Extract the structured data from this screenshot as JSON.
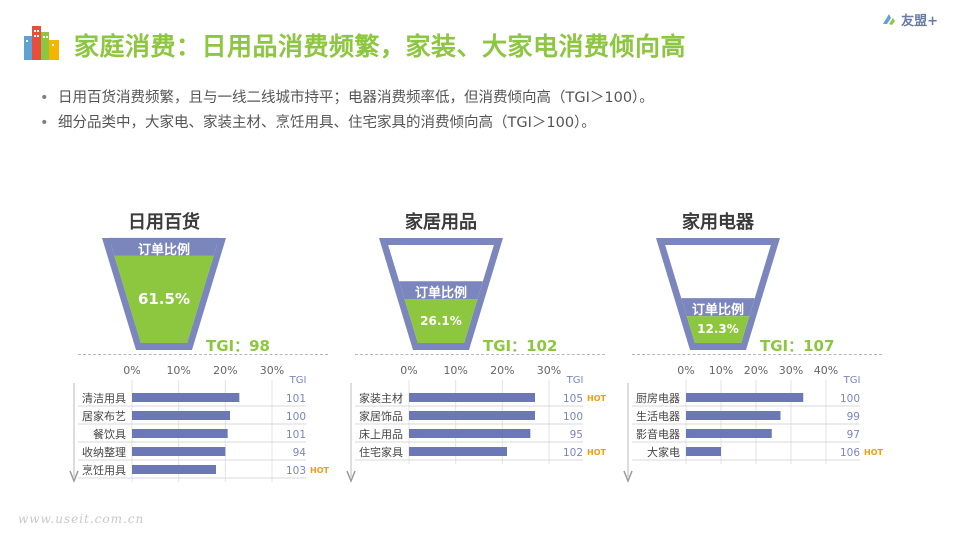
{
  "header": {
    "title": "家庭消费：日用品消费频繁，家装、大家电消费倾向高",
    "brand": "友盟+"
  },
  "bullets": [
    "日用百货消费频繁，且与一线二线城市持平；电器消费频率低，但消费倾向高（TGI＞100）。",
    "细分品类中，大家电、家装主材、烹饪用具、住宅家具的消费倾向高（TGI＞100）。"
  ],
  "funnel_label": "订单比例",
  "watermark": "www.useit.com.cn",
  "colors": {
    "accent_green": "#8dc63f",
    "funnel_blue": "#7b86bd",
    "bar_blue": "#6c77b6",
    "hot_orange": "#f39c12"
  },
  "panels": [
    {
      "title": "日用百货",
      "order_share": "61.5%",
      "order_value": 61.5,
      "tgi_main": "TGI：98"
    },
    {
      "title": "家居用品",
      "order_share": "26.1%",
      "order_value": 26.1,
      "tgi_main": "TGI：102"
    },
    {
      "title": "家用电器",
      "order_share": "12.3%",
      "order_value": 12.3,
      "tgi_main": "TGI：107"
    }
  ],
  "chart_data": [
    {
      "type": "bar",
      "orientation": "horizontal",
      "categories": [
        "清洁用具",
        "居家布艺",
        "餐饮具",
        "收纳整理",
        "烹饪用具"
      ],
      "values": [
        23,
        21,
        20.5,
        20,
        18
      ],
      "tgi_header": "TGI",
      "tgi": [
        "101",
        "100",
        "101",
        "94",
        "103"
      ],
      "hot": [
        false,
        false,
        false,
        false,
        true
      ],
      "xticks": [
        "0%",
        "10%",
        "20%",
        "30%"
      ],
      "xlim": [
        0,
        30
      ]
    },
    {
      "type": "bar",
      "orientation": "horizontal",
      "categories": [
        "家装主材",
        "家居饰品",
        "床上用品",
        "住宅家具"
      ],
      "values": [
        27,
        27,
        26,
        21
      ],
      "tgi_header": "TGI",
      "tgi": [
        "105",
        "100",
        "95",
        "102"
      ],
      "hot": [
        true,
        false,
        false,
        true
      ],
      "xticks": [
        "0%",
        "10%",
        "20%",
        "30%"
      ],
      "xlim": [
        0,
        30
      ]
    },
    {
      "type": "bar",
      "orientation": "horizontal",
      "categories": [
        "厨房电器",
        "生活电器",
        "影音电器",
        "大家电"
      ],
      "values": [
        33.5,
        27,
        24.5,
        10
      ],
      "tgi_header": "TGI",
      "tgi": [
        "100",
        "99",
        "97",
        "106"
      ],
      "hot": [
        false,
        false,
        false,
        true
      ],
      "xticks": [
        "0%",
        "10%",
        "20%",
        "30%",
        "40%"
      ],
      "xlim": [
        0,
        40
      ]
    }
  ],
  "hot_label": "HOT"
}
